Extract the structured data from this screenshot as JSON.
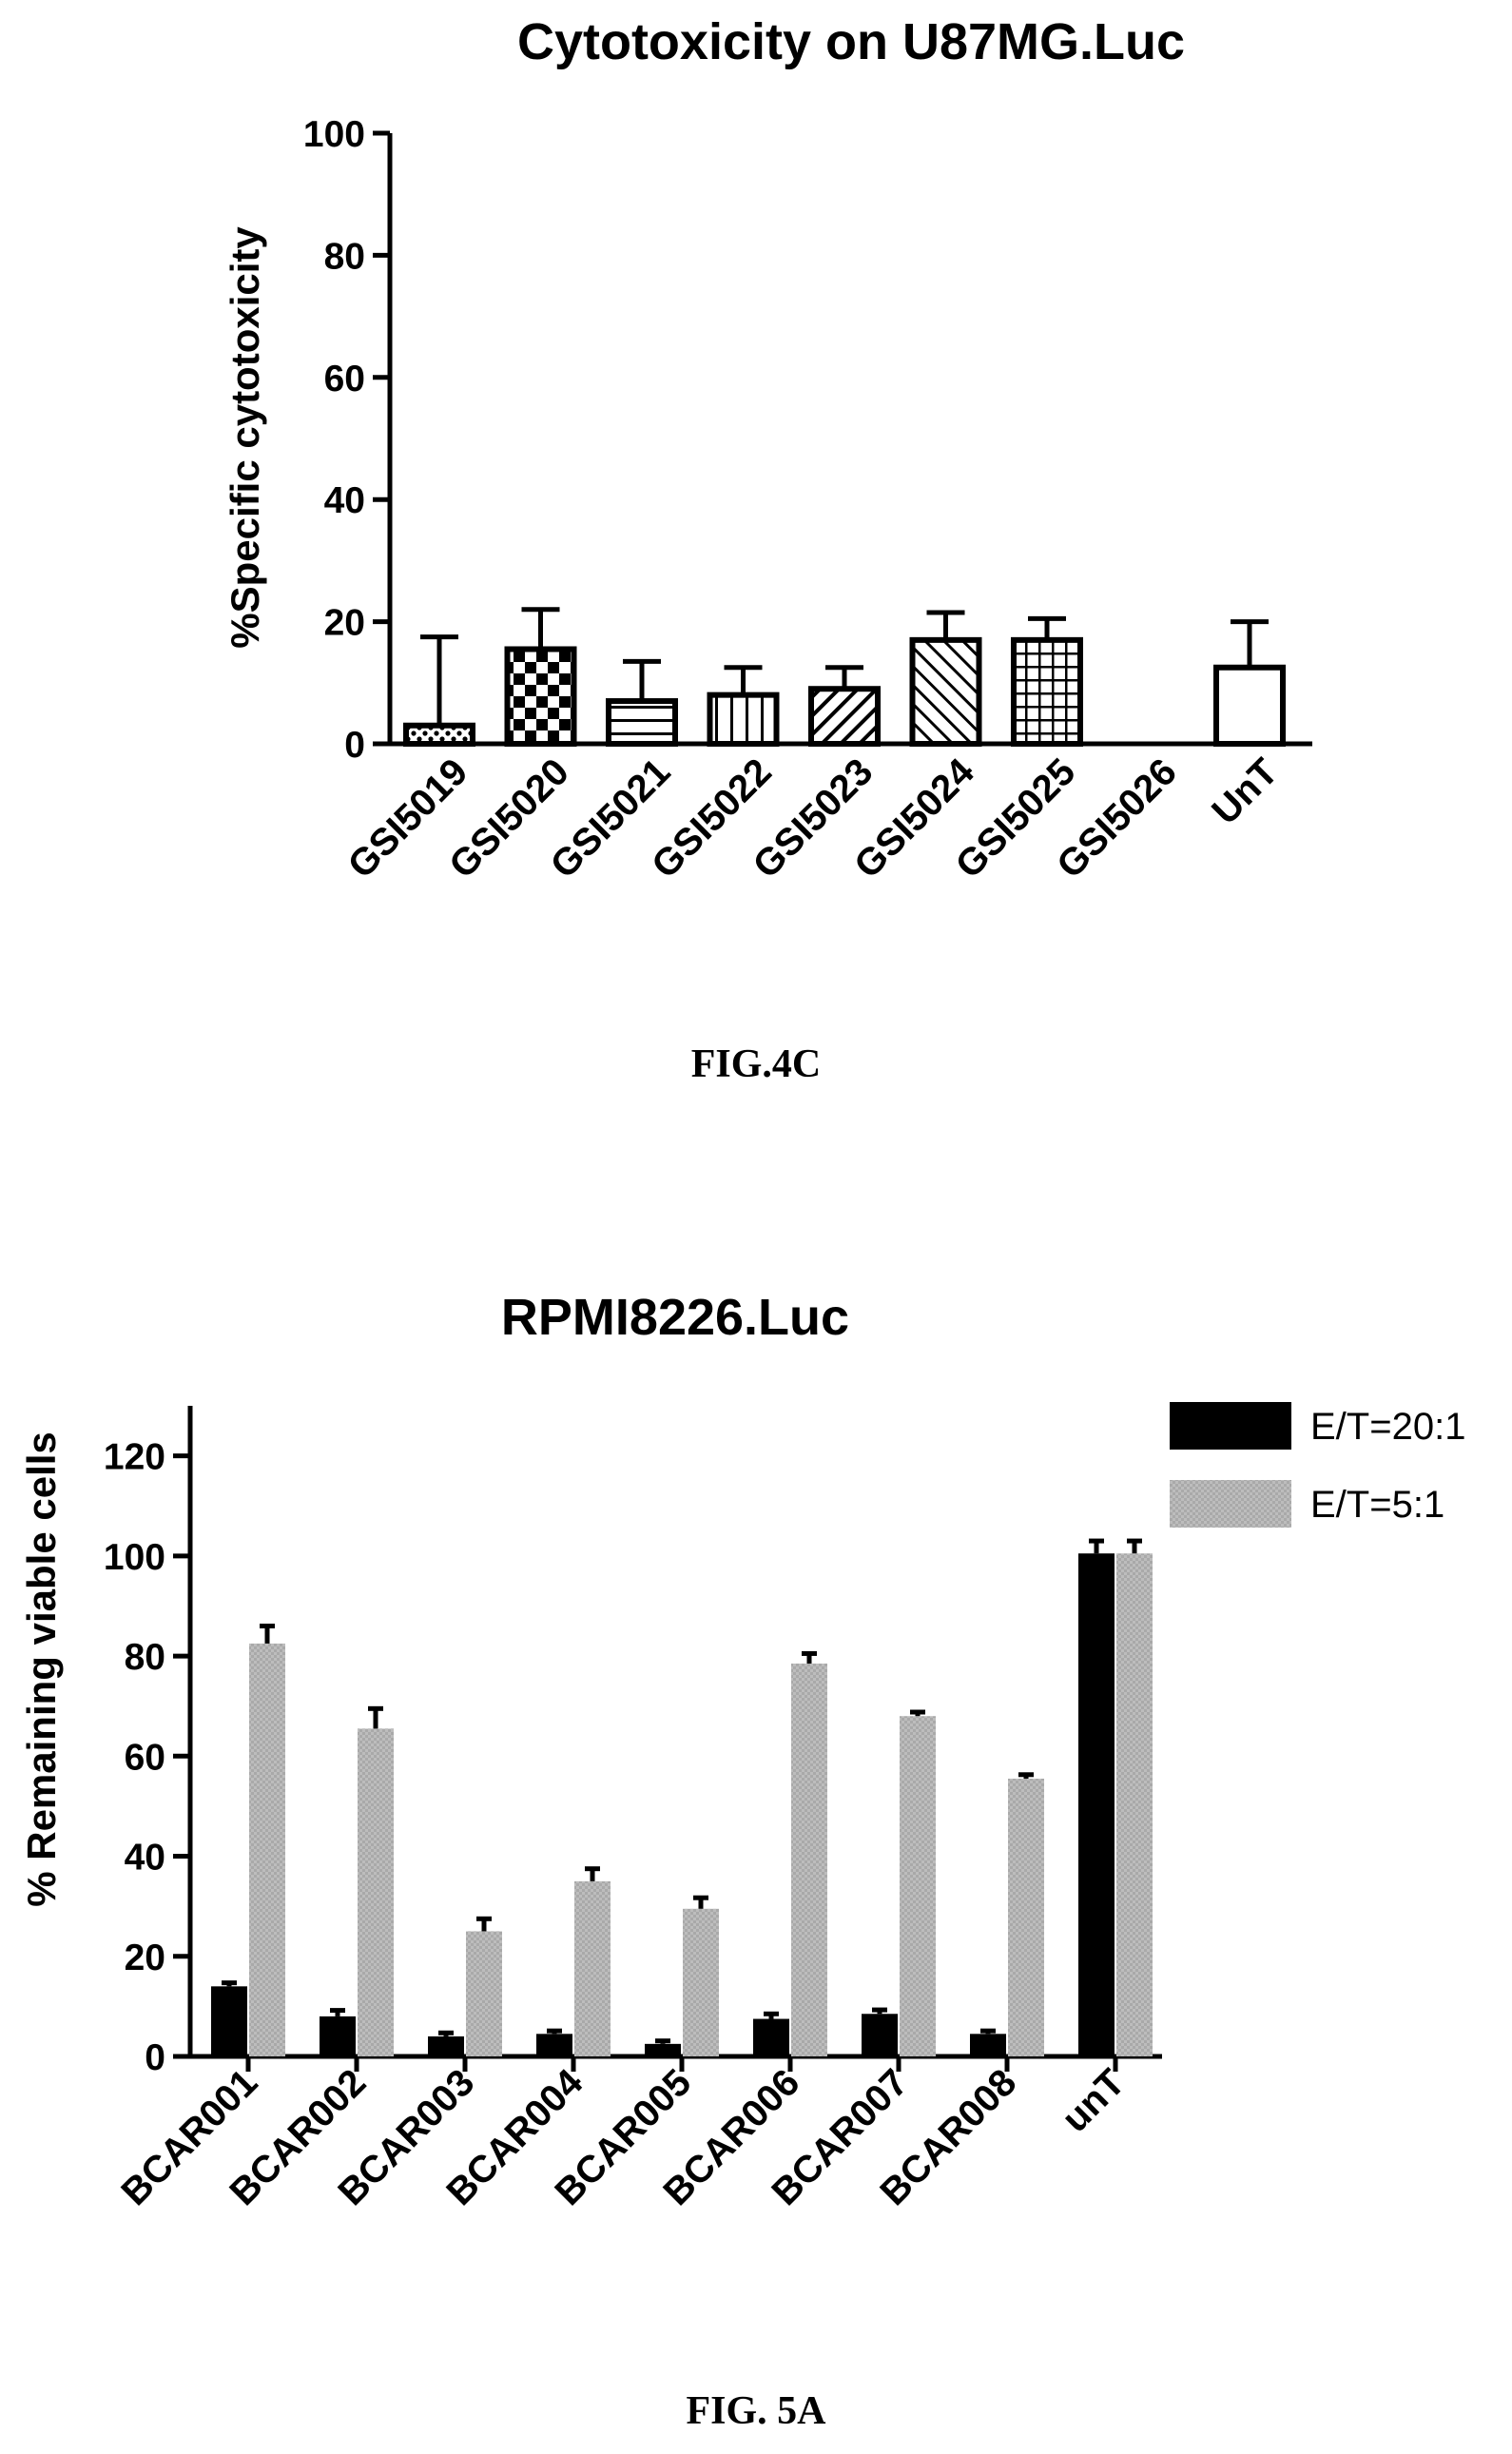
{
  "chart_data": [
    {
      "type": "bar",
      "title": "Cytotoxicity on U87MG.Luc",
      "ylabel": "%Specific cytotoxicity",
      "xlabel": "",
      "ylim": [
        0,
        100
      ],
      "yticks": [
        0,
        20,
        40,
        60,
        80,
        100
      ],
      "categories": [
        "GSI5019",
        "GSI5020",
        "GSI5021",
        "GSI5022",
        "GSI5023",
        "GSI5024",
        "GSI5025",
        "GSI5026",
        "UnT"
      ],
      "values": [
        3,
        15.5,
        7,
        8,
        9,
        17,
        17,
        0,
        12.5
      ],
      "errors": [
        14.5,
        6.5,
        6.5,
        4.5,
        3.5,
        4.5,
        3.5,
        0,
        7.5
      ],
      "patterns": [
        "dots",
        "checker",
        "hlines",
        "vlines",
        "diag",
        "backdiag",
        "grid",
        "none",
        "none"
      ],
      "caption": "FIG.4C"
    },
    {
      "type": "bar",
      "title": "RPMI8226.Luc",
      "ylabel": "% Remaining viable cells",
      "xlabel": "",
      "ylim": [
        0,
        130
      ],
      "yticks": [
        0,
        20,
        40,
        60,
        80,
        100,
        120
      ],
      "categories": [
        "BCAR001",
        "BCAR002",
        "BCAR003",
        "BCAR004",
        "BCAR005",
        "BCAR006",
        "BCAR007",
        "BCAR008",
        "unT"
      ],
      "series": [
        {
          "name": "E/T=20:1",
          "color": "#000000",
          "values": [
            14,
            8,
            4,
            4.5,
            2.5,
            7.5,
            8.5,
            4.5,
            100.5
          ],
          "errors": [
            0.7,
            1.2,
            0.7,
            0.6,
            0.6,
            1,
            0.8,
            0.6,
            2.5
          ]
        },
        {
          "name": "E/T=5:1",
          "color": "#b3b3b3",
          "values": [
            82.5,
            65.5,
            25,
            35,
            29.5,
            78.5,
            68,
            55.5,
            100.5
          ],
          "errors": [
            3.5,
            4,
            2.5,
            2.5,
            2.2,
            2,
            0.8,
            0.8,
            2.5
          ]
        }
      ],
      "legend_position": "top-right",
      "caption": "FIG. 5A"
    }
  ]
}
